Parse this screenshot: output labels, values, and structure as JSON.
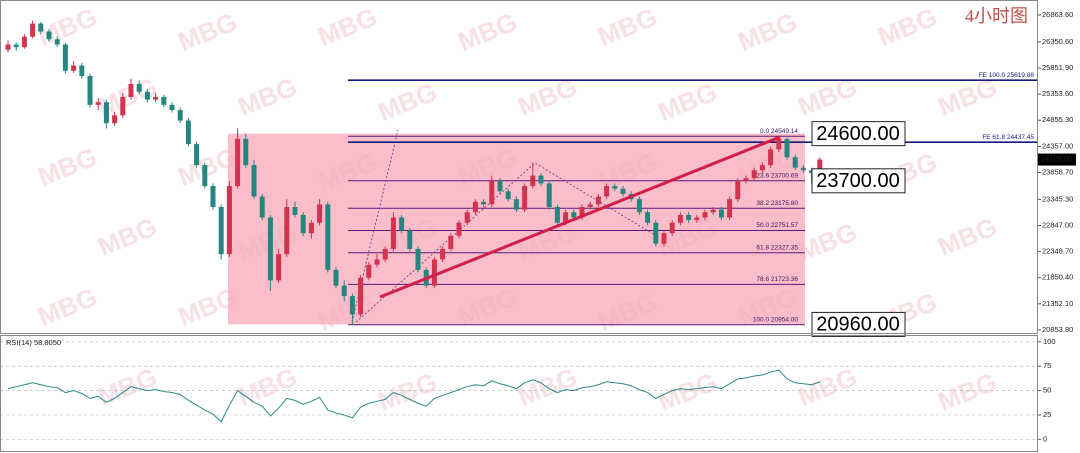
{
  "chart_data": [
    {
      "type": "candlestick",
      "title": "4小时图",
      "watermark": "MBG",
      "colors": {
        "up": "#d2334f",
        "down": "#26857f"
      },
      "ylim": [
        20777,
        27150
      ],
      "yticks": [
        {
          "value": 26863.6,
          "label": "26863.60"
        },
        {
          "value": 26350.6,
          "label": "26350.60"
        },
        {
          "value": 25851.9,
          "label": "25851.90"
        },
        {
          "value": 25353.6,
          "label": "25353.60"
        },
        {
          "value": 24855.3,
          "label": "24855.30"
        },
        {
          "value": 24357,
          "label": "24357.00"
        },
        {
          "value": 23858.7,
          "label": "23858.70"
        },
        {
          "value": 23345.3,
          "label": "23345.30"
        },
        {
          "value": 22847,
          "label": "22847.00"
        },
        {
          "value": 22348.7,
          "label": "22348.70"
        },
        {
          "value": 21850.4,
          "label": "21850.40"
        },
        {
          "value": 21352.1,
          "label": "21352.10"
        },
        {
          "value": 20853.8,
          "label": "20853.80"
        }
      ],
      "current_price": {
        "value": 24105.5,
        "label": "24105.50"
      },
      "fe_levels": [
        {
          "value": 25619.88,
          "label": "FE 100.0  25619.88"
        },
        {
          "value": 24437.45,
          "label": "FE 61.8  24437.45"
        }
      ],
      "fib_levels": [
        {
          "value": 24549.14,
          "label": "0.0  24549.14"
        },
        {
          "value": 23700.69,
          "label": "23.6  23700.69"
        },
        {
          "value": 23175.8,
          "label": "38.2  23175.80"
        },
        {
          "value": 22751.57,
          "label": "50.0  22751.57"
        },
        {
          "value": 22327.35,
          "label": "61.8  22327.35"
        },
        {
          "value": 21723.36,
          "label": "78.6  21723.36"
        },
        {
          "value": 20954,
          "label": "100.0  20954.00"
        }
      ],
      "price_boxes": [
        {
          "value": 24600,
          "label": "24600.00"
        },
        {
          "value": 23700,
          "label": "23700.00"
        },
        {
          "value": 20960,
          "label": "20960.00"
        }
      ],
      "candles": [
        [
          26200,
          26380,
          26150,
          26300
        ],
        [
          26300,
          26340,
          26180,
          26250
        ],
        [
          26250,
          26500,
          26220,
          26450
        ],
        [
          26450,
          26760,
          26420,
          26700
        ],
        [
          26700,
          26730,
          26500,
          26550
        ],
        [
          26550,
          26600,
          26350,
          26400
        ],
        [
          26400,
          26450,
          26250,
          26300
        ],
        [
          26300,
          26330,
          25750,
          25800
        ],
        [
          25800,
          25980,
          25760,
          25900
        ],
        [
          25900,
          25950,
          25650,
          25700
        ],
        [
          25700,
          25750,
          25100,
          25150
        ],
        [
          25150,
          25280,
          25050,
          25200
        ],
        [
          25200,
          25250,
          24700,
          24800
        ],
        [
          24800,
          25020,
          24750,
          24950
        ],
        [
          24950,
          25380,
          24900,
          25300
        ],
        [
          25300,
          25650,
          25250,
          25550
        ],
        [
          25550,
          25620,
          25350,
          25400
        ],
        [
          25400,
          25450,
          25200,
          25250
        ],
        [
          25250,
          25380,
          25200,
          25300
        ],
        [
          25300,
          25340,
          25100,
          25150
        ],
        [
          25150,
          25200,
          25000,
          25050
        ],
        [
          25050,
          25100,
          24800,
          24850
        ],
        [
          24850,
          24900,
          24350,
          24400
        ],
        [
          24400,
          24450,
          23950,
          24000
        ],
        [
          24000,
          24050,
          23550,
          23600
        ],
        [
          23600,
          23650,
          23150,
          23200
        ],
        [
          23200,
          23250,
          22200,
          22300
        ],
        [
          22300,
          23700,
          22250,
          23600
        ],
        [
          23600,
          24700,
          23550,
          24500
        ],
        [
          24500,
          24600,
          23950,
          24000
        ],
        [
          24000,
          24100,
          23350,
          23400
        ],
        [
          23400,
          23450,
          22950,
          23000
        ],
        [
          23000,
          23050,
          21600,
          21800
        ],
        [
          21800,
          22400,
          21750,
          22300
        ],
        [
          22300,
          23350,
          22250,
          23200
        ],
        [
          23200,
          23300,
          23000,
          23050
        ],
        [
          23050,
          23100,
          22650,
          22700
        ],
        [
          22700,
          22950,
          22600,
          22900
        ],
        [
          22900,
          23350,
          22850,
          23250
        ],
        [
          23250,
          23300,
          21950,
          22000
        ],
        [
          22000,
          22050,
          21650,
          21700
        ],
        [
          21700,
          21800,
          21400,
          21500
        ],
        [
          21500,
          21550,
          20954,
          21150
        ],
        [
          21150,
          21900,
          21100,
          21850
        ],
        [
          21850,
          22150,
          21800,
          22100
        ],
        [
          22100,
          22300,
          22050,
          22200
        ],
        [
          22200,
          22450,
          22150,
          22400
        ],
        [
          22400,
          23100,
          22350,
          23000
        ],
        [
          23000,
          23050,
          22700,
          22750
        ],
        [
          22750,
          22800,
          22350,
          22400
        ],
        [
          22400,
          22450,
          21950,
          22000
        ],
        [
          22000,
          22050,
          21650,
          21700
        ],
        [
          21700,
          22250,
          21650,
          22200
        ],
        [
          22200,
          22450,
          22150,
          22400
        ],
        [
          22400,
          22700,
          22350,
          22650
        ],
        [
          22650,
          22950,
          22600,
          22900
        ],
        [
          22900,
          23150,
          22850,
          23100
        ],
        [
          23100,
          23350,
          23050,
          23300
        ],
        [
          23300,
          23350,
          23200,
          23250
        ],
        [
          23250,
          23800,
          23200,
          23700
        ],
        [
          23700,
          23750,
          23450,
          23500
        ],
        [
          23500,
          23550,
          23300,
          23350
        ],
        [
          23350,
          23400,
          23100,
          23150
        ],
        [
          23150,
          23650,
          23100,
          23600
        ],
        [
          23600,
          24050,
          23550,
          23800
        ],
        [
          23800,
          23850,
          23600,
          23650
        ],
        [
          23650,
          23700,
          23150,
          23200
        ],
        [
          23200,
          23250,
          22850,
          22900
        ],
        [
          22900,
          23150,
          22850,
          23100
        ],
        [
          23100,
          23150,
          22950,
          23000
        ],
        [
          23000,
          23250,
          22950,
          23200
        ],
        [
          23200,
          23300,
          23150,
          23250
        ],
        [
          23250,
          23450,
          23200,
          23400
        ],
        [
          23400,
          23650,
          23350,
          23600
        ],
        [
          23600,
          23650,
          23500,
          23550
        ],
        [
          23550,
          23600,
          23400,
          23450
        ],
        [
          23450,
          23500,
          23300,
          23350
        ],
        [
          23350,
          23400,
          23050,
          23100
        ],
        [
          23100,
          23150,
          22850,
          22900
        ],
        [
          22900,
          22950,
          22450,
          22500
        ],
        [
          22500,
          22750,
          22450,
          22700
        ],
        [
          22700,
          22950,
          22650,
          22900
        ],
        [
          22900,
          23100,
          22850,
          23050
        ],
        [
          23050,
          23100,
          22900,
          22950
        ],
        [
          22950,
          23050,
          22900,
          23000
        ],
        [
          23000,
          23150,
          22950,
          23100
        ],
        [
          23100,
          23200,
          23050,
          23150
        ],
        [
          23150,
          23200,
          22950,
          23000
        ],
        [
          23000,
          23400,
          22950,
          23350
        ],
        [
          23350,
          23750,
          23300,
          23700
        ],
        [
          23700,
          23800,
          23650,
          23750
        ],
        [
          23750,
          23950,
          23700,
          23900
        ],
        [
          23900,
          24050,
          23850,
          24000
        ],
        [
          24000,
          24350,
          23950,
          24300
        ],
        [
          24300,
          24549,
          24250,
          24500
        ],
        [
          24500,
          24520,
          24100,
          24150
        ],
        [
          24150,
          24200,
          23900,
          23950
        ],
        [
          23950,
          24000,
          23850,
          23900
        ],
        [
          23900,
          23950,
          23650,
          23850
        ],
        [
          23850,
          24150,
          23800,
          24105.5
        ]
      ]
    },
    {
      "type": "line",
      "title": "RSI(14) 58.8050",
      "color": "#2a8a8a",
      "ylim": [
        -13,
        106
      ],
      "yticks": [
        100,
        75,
        50,
        25,
        0
      ],
      "values": [
        52,
        54,
        56,
        58,
        56,
        54,
        53,
        48,
        50,
        47,
        42,
        44,
        38,
        42,
        48,
        54,
        52,
        50,
        51,
        49,
        48,
        46,
        40,
        35,
        30,
        26,
        18,
        35,
        50,
        44,
        38,
        34,
        24,
        32,
        42,
        40,
        36,
        39,
        43,
        30,
        27,
        25,
        22,
        33,
        37,
        39,
        41,
        48,
        45,
        41,
        37,
        34,
        42,
        45,
        48,
        51,
        54,
        56,
        55,
        60,
        57,
        55,
        52,
        58,
        61,
        58,
        52,
        48,
        51,
        50,
        53,
        54,
        56,
        59,
        58,
        57,
        55,
        51,
        48,
        42,
        46,
        50,
        52,
        51,
        52,
        53,
        54,
        52,
        57,
        62,
        63,
        65,
        66,
        69,
        71,
        62,
        58,
        57,
        56,
        58.805
      ]
    }
  ]
}
